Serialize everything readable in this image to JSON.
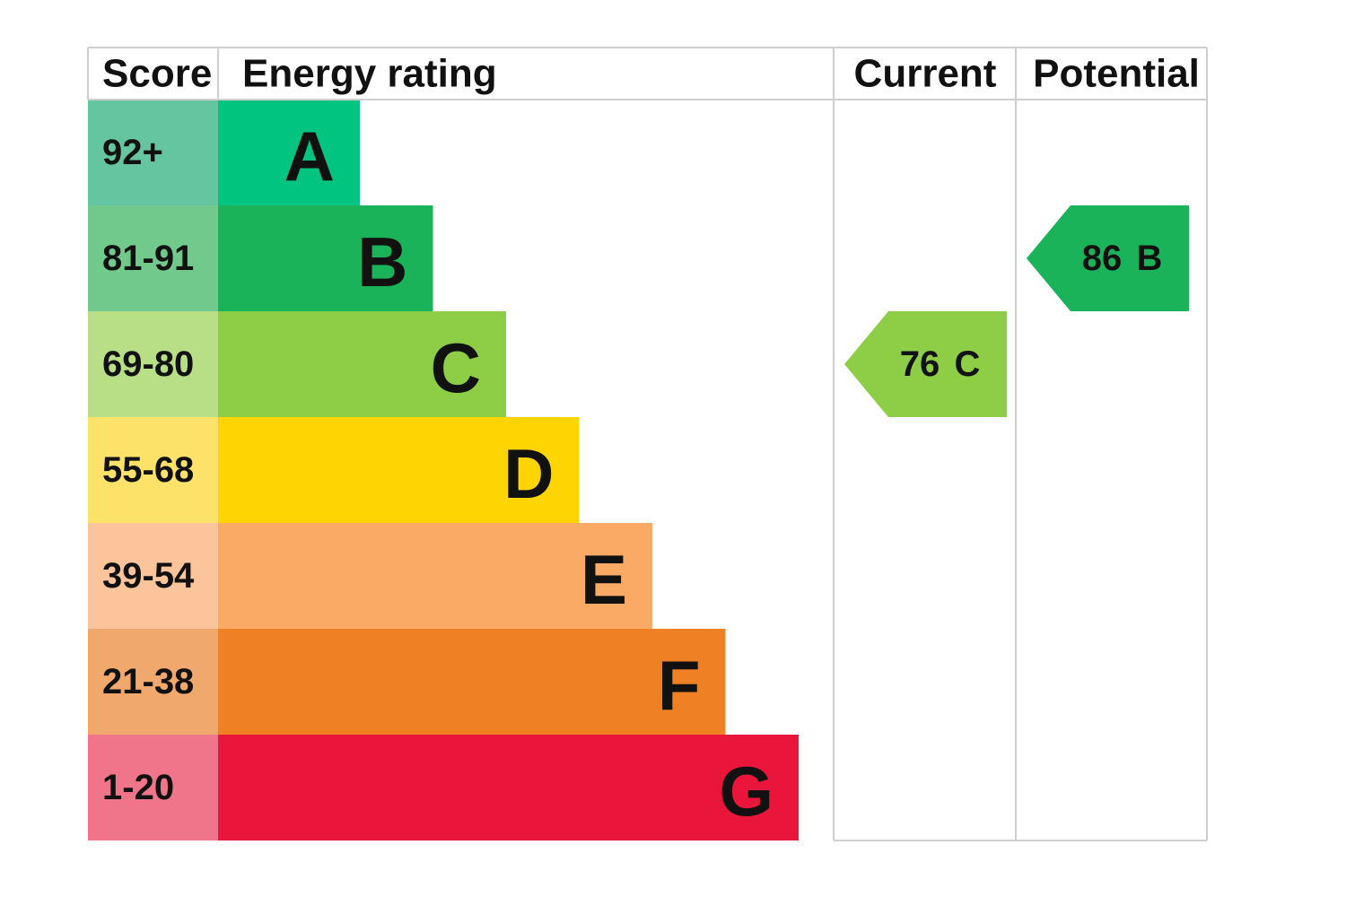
{
  "header": {
    "score": "Score",
    "rating": "Energy rating",
    "current": "Current",
    "potential": "Potential"
  },
  "rows": [
    {
      "score": "92+",
      "band": "A",
      "score_color": "#64c5a0",
      "color": "#00c480"
    },
    {
      "score": "81-91",
      "band": "B",
      "score_color": "#72c98c",
      "color": "#1bb35a"
    },
    {
      "score": "69-80",
      "band": "C",
      "score_color": "#b8df86",
      "color": "#8dce46"
    },
    {
      "score": "55-68",
      "band": "D",
      "score_color": "#fde26a",
      "color": "#fed500"
    },
    {
      "score": "39-54",
      "band": "E",
      "score_color": "#fcc49b",
      "color": "#fbaa66"
    },
    {
      "score": "21-38",
      "band": "F",
      "score_color": "#f1a86c",
      "color": "#ef8023"
    },
    {
      "score": "1-20",
      "band": "G",
      "score_color": "#f0758a",
      "color": "#e9153b"
    }
  ],
  "current": {
    "value": 76,
    "band": "C"
  },
  "potential": {
    "value": 86,
    "band": "B"
  }
}
